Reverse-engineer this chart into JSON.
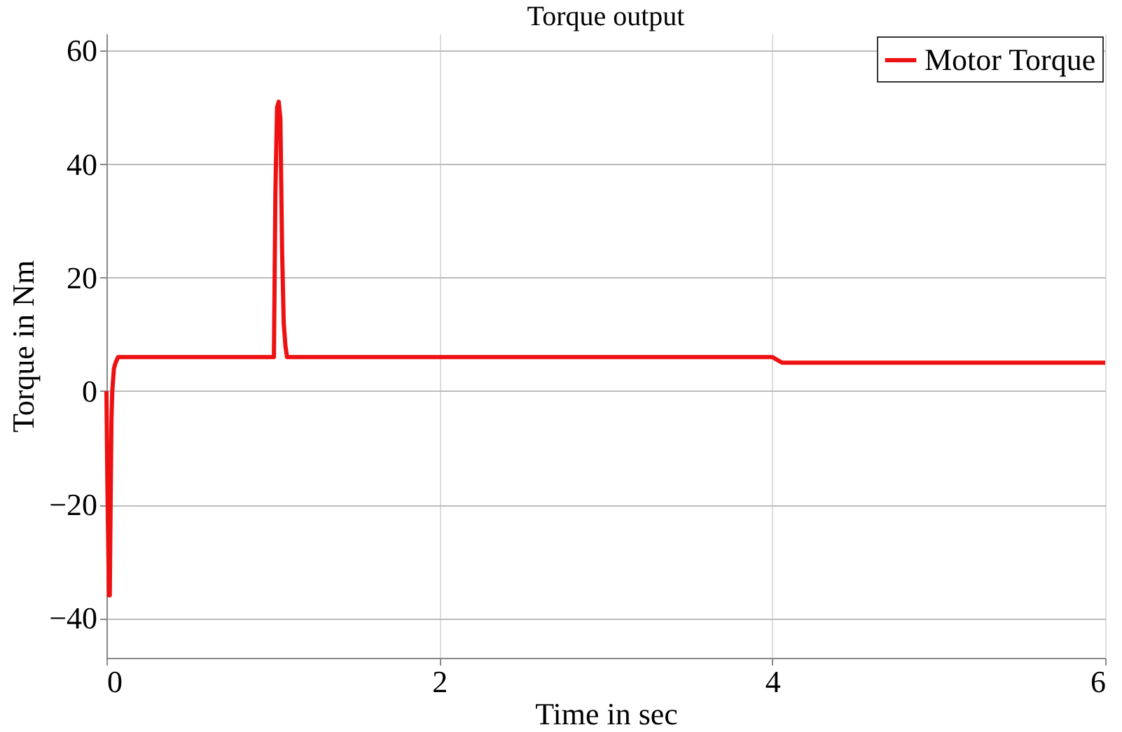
{
  "chart_data": {
    "type": "line",
    "title": "Torque output",
    "xlabel": "Time in sec",
    "ylabel": "Torque in Nm",
    "xlim": [
      0,
      6
    ],
    "ylim": [
      -47,
      63
    ],
    "xticks": [
      0,
      2,
      4,
      6
    ],
    "yticks": [
      -40,
      -20,
      0,
      20,
      40,
      60
    ],
    "grid": true,
    "legend": "top right",
    "line_style": "solid",
    "marker": "none",
    "series": [
      {
        "name": "Motor Torque",
        "color": "#ee1111",
        "x": [
          0,
          0.005,
          0.015,
          0.02,
          0.025,
          0.03,
          0.035,
          0.045,
          0.055,
          0.07,
          0.1,
          0.5,
          1.0,
          1.006,
          1.015,
          1.025,
          1.035,
          1.045,
          1.055,
          1.065,
          1.075,
          1.085,
          1.1,
          2,
          3,
          4.0,
          4.03,
          4.06,
          5,
          6
        ],
        "values": [
          0,
          -15,
          -36,
          -36,
          -20,
          -5,
          0,
          4,
          5,
          6,
          6,
          6,
          6,
          6,
          35,
          50,
          51,
          48,
          25,
          12,
          8,
          6,
          6,
          6,
          6,
          6,
          5.5,
          5,
          5,
          5
        ]
      }
    ]
  }
}
